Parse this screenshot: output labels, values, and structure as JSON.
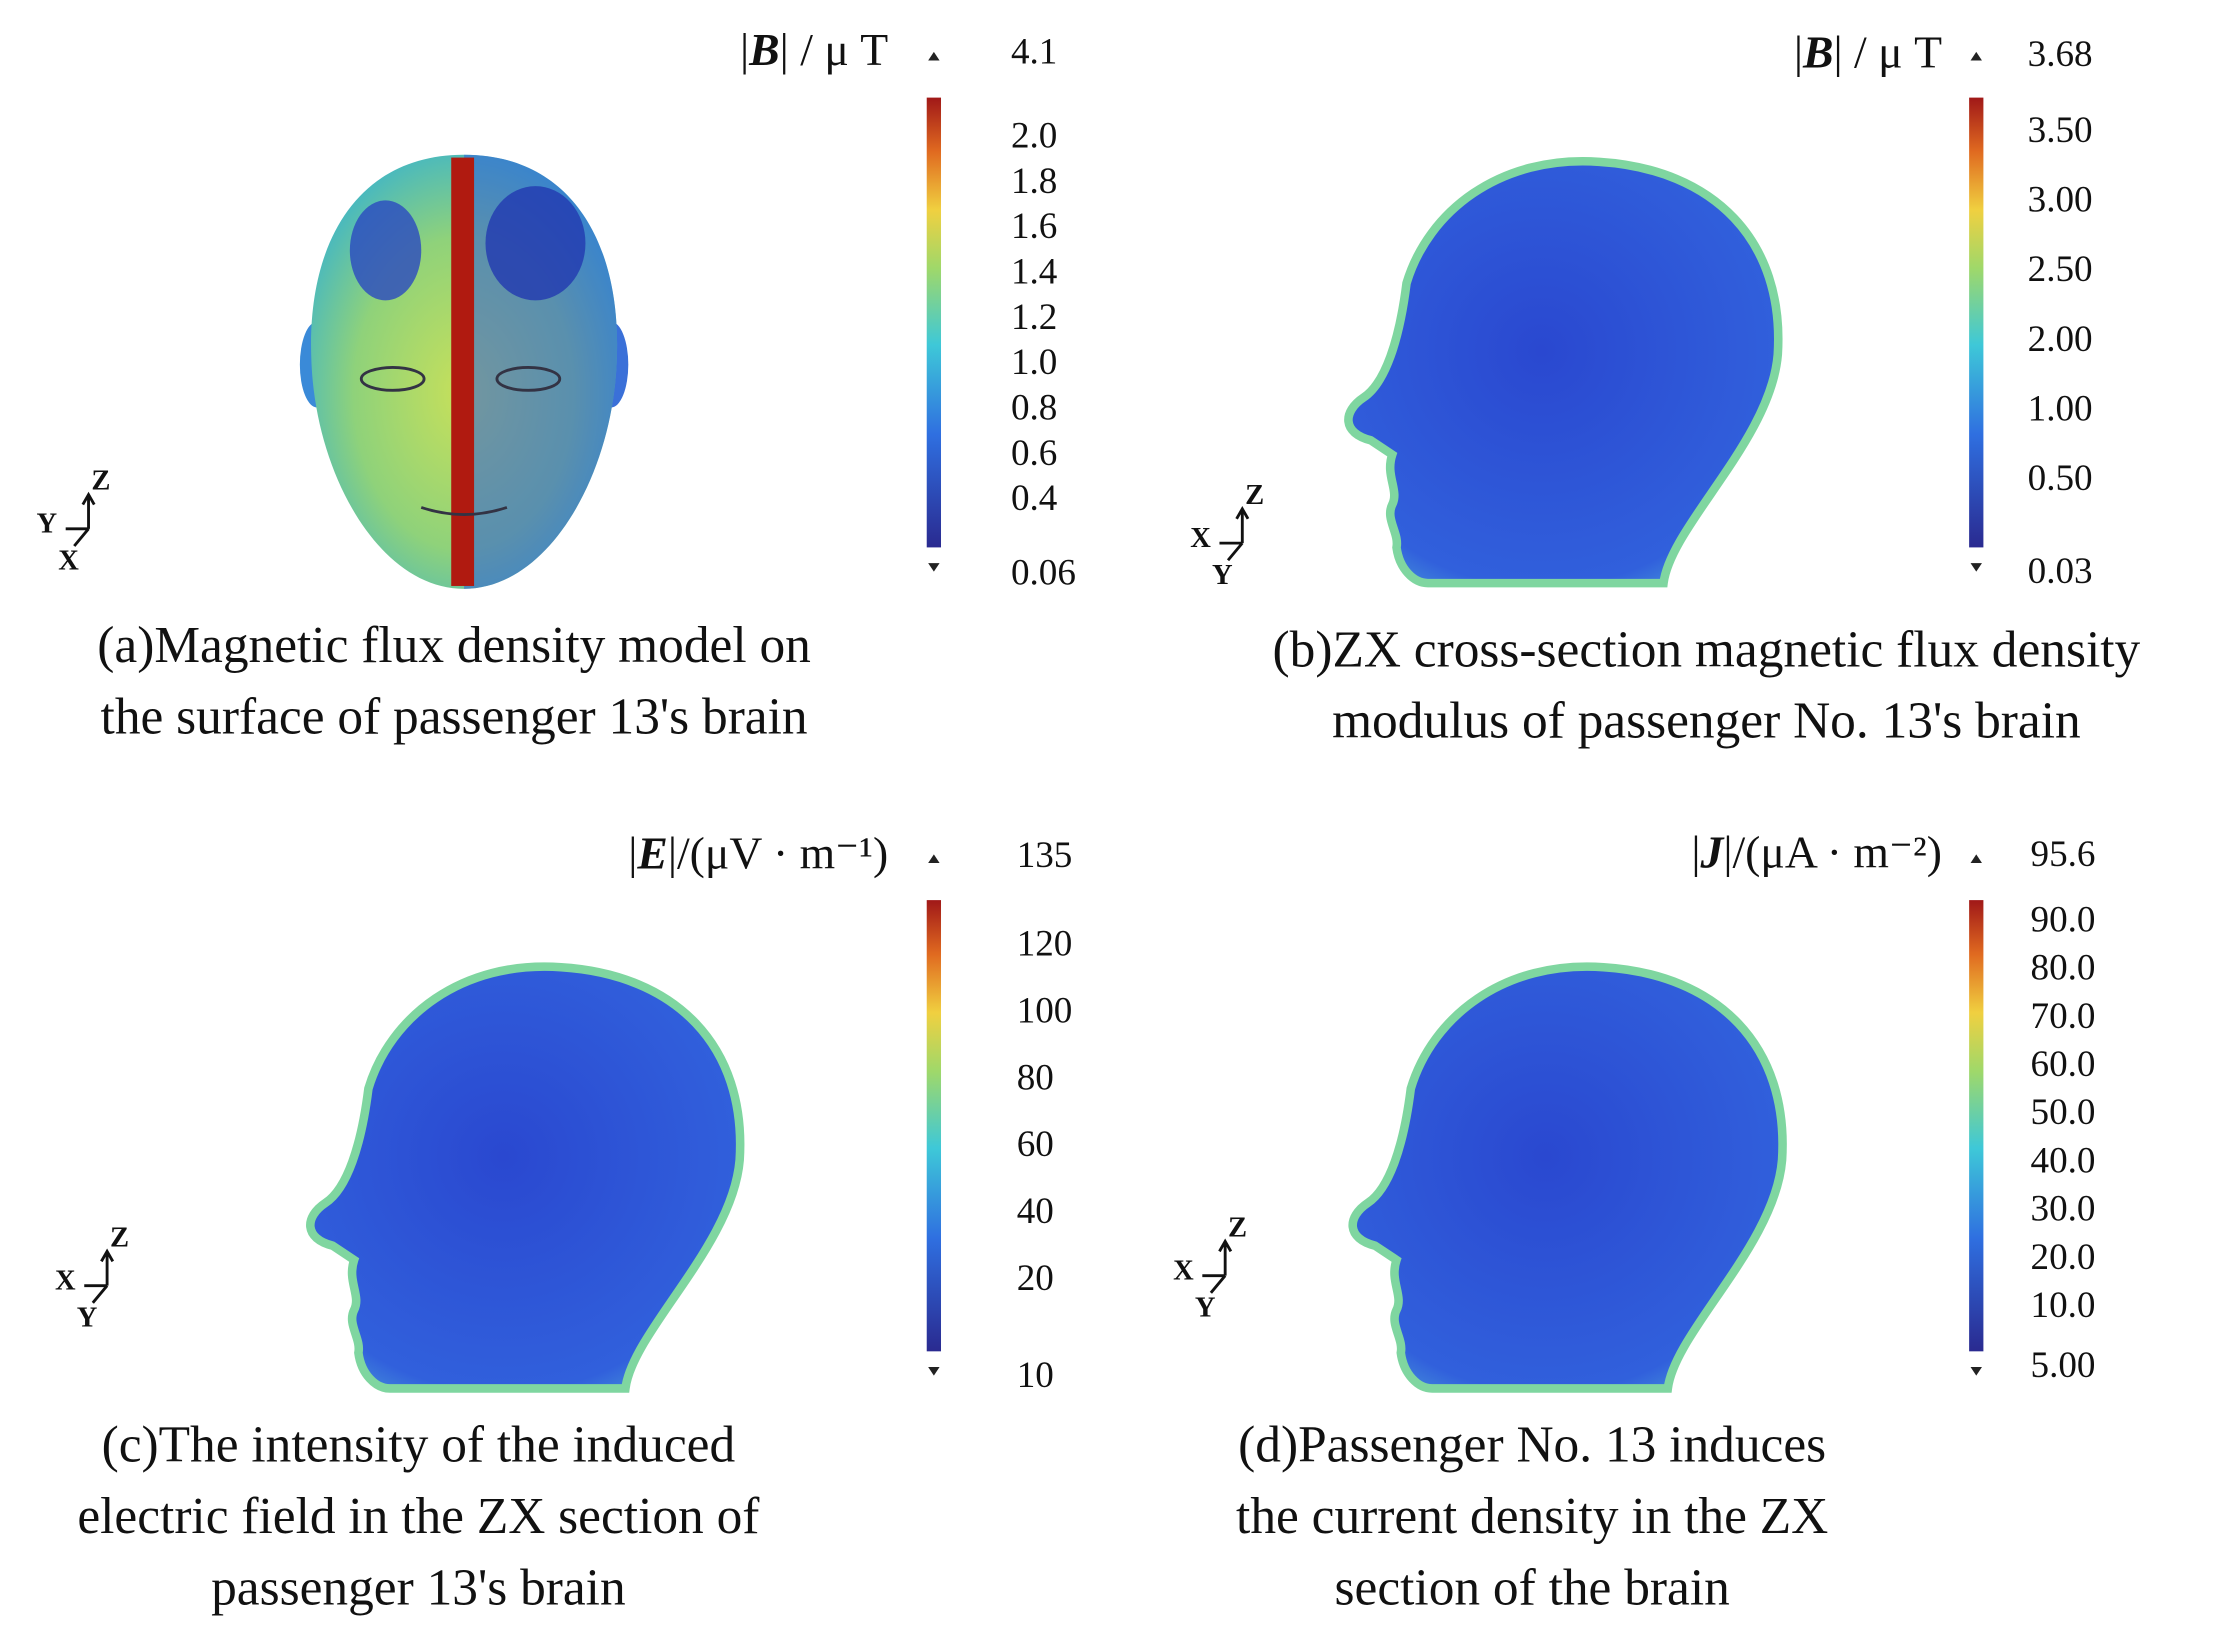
{
  "panels": [
    {
      "unit_label": {
        "prefix": "|",
        "symbol": "B",
        "suffix": "| / μ T"
      },
      "colorbar": {
        "max": "4.1",
        "min": "0.06",
        "ticks": [
          "2.0",
          "1.8",
          "1.6",
          "1.4",
          "1.2",
          "1.0",
          "0.8",
          "0.6",
          "0.4"
        ]
      },
      "axes": {
        "z": "Z",
        "h": "Y",
        "d": "X"
      },
      "caption": [
        "(a)Magnetic flux density model on",
        "the surface of passenger 13's brain"
      ]
    },
    {
      "unit_label": {
        "prefix": "|",
        "symbol": "B",
        "suffix": "| / μ T"
      },
      "colorbar": {
        "max": "3.68",
        "min": "0.03",
        "ticks": [
          "3.50",
          "3.00",
          "2.50",
          "2.00",
          "1.00",
          "0.50"
        ]
      },
      "axes": {
        "z": "Z",
        "h": "X",
        "d": "Y"
      },
      "caption": [
        "(b)ZX cross-section magnetic flux density",
        "modulus of passenger No. 13's brain"
      ]
    },
    {
      "unit_label": {
        "prefix": "|",
        "symbol": "E",
        "suffix": "|/(μV · m⁻¹)"
      },
      "colorbar": {
        "max": "135",
        "min": "10",
        "ticks": [
          "120",
          "100",
          "80",
          "60",
          "40",
          "20"
        ]
      },
      "axes": {
        "z": "Z",
        "h": "X",
        "d": "Y"
      },
      "caption": [
        "(c)The intensity of the induced",
        "electric field in the ZX section of",
        "passenger 13's brain"
      ]
    },
    {
      "unit_label": {
        "prefix": "|",
        "symbol": "J",
        "suffix": "|/(μA · m⁻²)"
      },
      "colorbar": {
        "max": "95.6",
        "min": "5.00",
        "ticks": [
          "90.0",
          "80.0",
          "70.0",
          "60.0",
          "50.0",
          "40.0",
          "30.0",
          "20.0",
          "10.0"
        ]
      },
      "axes": {
        "z": "Z",
        "h": "X",
        "d": "Y"
      },
      "caption": [
        "(d)Passenger No. 13 induces",
        "the current density in the ZX",
        "section of the brain"
      ]
    }
  ]
}
